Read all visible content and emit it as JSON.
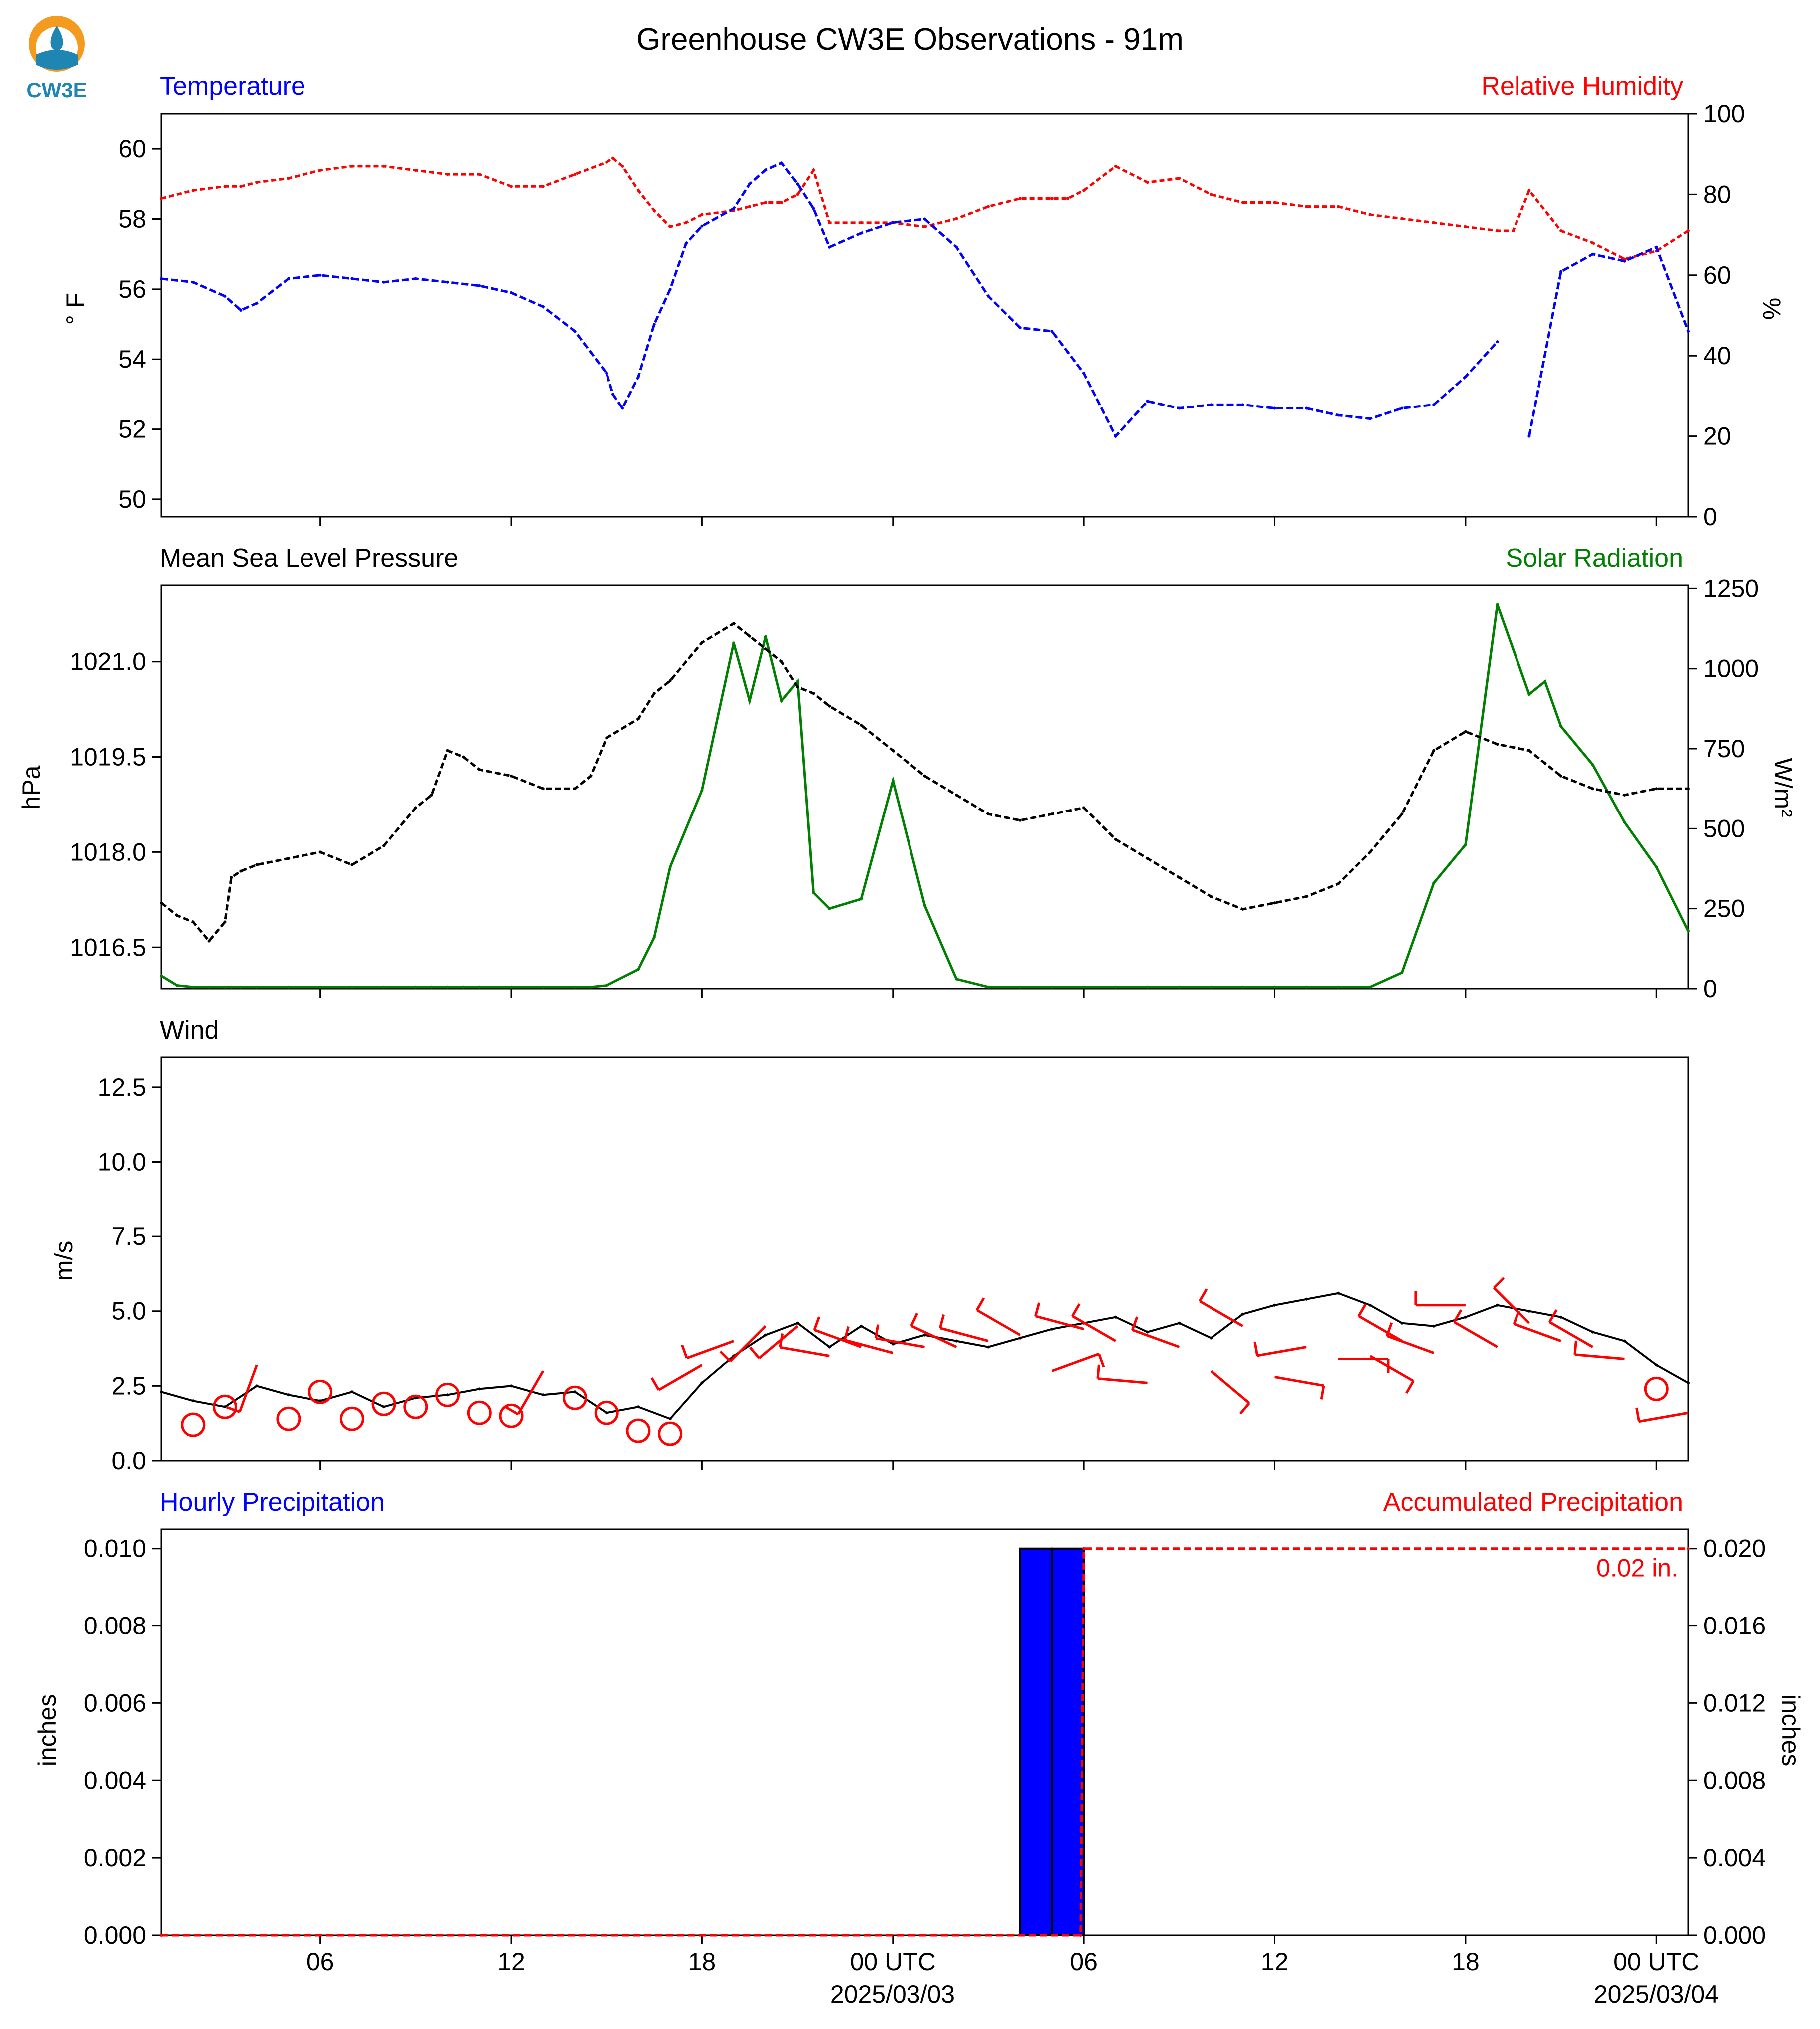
{
  "page": {
    "title": "Greenhouse CW3E Observations - 91m",
    "logo_text": "CW3E"
  },
  "colors": {
    "temperature": "#0000ff",
    "humidity": "#ff0000",
    "pressure": "#000000",
    "solar": "#008000",
    "wind_speed": "#000000",
    "wind_barb": "#ff0000",
    "hourly_precip": "#0000ff",
    "accum_precip": "#ff0000",
    "logo_orange": "#f39a1f",
    "logo_teal": "#1f86b4"
  },
  "time_axis": {
    "tick_labels": [
      "06",
      "12",
      "18",
      "00 UTC",
      "06",
      "12",
      "18",
      "00 UTC"
    ],
    "date_labels": [
      "2025/03/03",
      "2025/03/04"
    ]
  },
  "chart_data": [
    {
      "id": "temperature_humidity",
      "type": "line",
      "left_title": "Temperature",
      "right_title": "Relative Humidity",
      "ylabel": "° F",
      "ylabel_right": "%",
      "ylim": [
        49.5,
        61
      ],
      "ylim_right": [
        0,
        100
      ],
      "yticks": [
        50,
        52,
        54,
        56,
        58,
        60
      ],
      "yticks_right": [
        0,
        20,
        40,
        60,
        80,
        100
      ],
      "x_hours": [
        0,
        1,
        2,
        2.5,
        3,
        4,
        5,
        6,
        7,
        8,
        9,
        10,
        11,
        12,
        13,
        14,
        14.2,
        14.5,
        15,
        15.5,
        16,
        16.5,
        17,
        18,
        18.5,
        19,
        19.5,
        20,
        20.5,
        21,
        22,
        23,
        24,
        25,
        26,
        27,
        28,
        28.5,
        29,
        30,
        31,
        32,
        33,
        34,
        35,
        36,
        37,
        38,
        39,
        40,
        41,
        42,
        42.5,
        43,
        44,
        45,
        46,
        47,
        48
      ],
      "series": [
        {
          "name": "Temperature",
          "axis": "left",
          "values": [
            56.3,
            56.2,
            55.8,
            55.4,
            55.6,
            56.3,
            56.4,
            56.3,
            56.2,
            56.3,
            56.2,
            56.1,
            55.9,
            55.5,
            54.8,
            53.6,
            53.0,
            52.6,
            53.5,
            55.0,
            56.0,
            57.3,
            57.8,
            58.3,
            59.0,
            59.4,
            59.6,
            59.0,
            58.3,
            57.2,
            57.6,
            57.9,
            58.0,
            57.2,
            55.8,
            54.9,
            54.8,
            54.2,
            53.6,
            51.8,
            52.8,
            52.6,
            52.7,
            52.7,
            52.6,
            52.6,
            52.4,
            52.3,
            52.6,
            52.7,
            53.5,
            54.5,
            null,
            51.8,
            56.5,
            57.0,
            56.8,
            57.2,
            54.8
          ]
        },
        {
          "name": "Relative Humidity",
          "axis": "right",
          "values": [
            79,
            81,
            82,
            82,
            83,
            84,
            86,
            87,
            87,
            86,
            85,
            85,
            82,
            82,
            85,
            88,
            89,
            87,
            81,
            76,
            72,
            73,
            75,
            76,
            77,
            78,
            78,
            80,
            86,
            73,
            73,
            73,
            72,
            74,
            77,
            79,
            79,
            79,
            81,
            87,
            83,
            84,
            80,
            78,
            78,
            77,
            77,
            75,
            74,
            73,
            72,
            71,
            71,
            81,
            71,
            68,
            64,
            66,
            71
          ]
        }
      ]
    },
    {
      "id": "pressure_solar",
      "type": "line",
      "left_title": "Mean Sea Level Pressure",
      "right_title": "Solar Radiation",
      "ylabel": "hPa",
      "ylabel_right": "W/m²",
      "ylim": [
        1015.85,
        1022.2
      ],
      "ylim_right": [
        0,
        1260
      ],
      "yticks": [
        1016.5,
        1018.0,
        1019.5,
        1021.0
      ],
      "ytick_labels": [
        "1016.5",
        "1018.0",
        "1019.5",
        "1021.0"
      ],
      "yticks_right": [
        0,
        250,
        500,
        750,
        1000,
        1250
      ],
      "x_hours": [
        0,
        0.5,
        1,
        1.5,
        2,
        2.2,
        2.5,
        3,
        4,
        5,
        6,
        7,
        8,
        8.5,
        9,
        9.5,
        10,
        11,
        12,
        13,
        13.5,
        14,
        15,
        15.5,
        16,
        17,
        18,
        18.5,
        19,
        19.5,
        20,
        20.5,
        21,
        22,
        23,
        24,
        25,
        26,
        27,
        28,
        29,
        30,
        31,
        32,
        33,
        34,
        35,
        36,
        37,
        38,
        39,
        40,
        41,
        42,
        43,
        43.5,
        44,
        45,
        46,
        47,
        48
      ],
      "series": [
        {
          "name": "Mean Sea Level Pressure",
          "axis": "left",
          "values": [
            1017.2,
            1017.0,
            1016.9,
            1016.6,
            1016.9,
            1017.6,
            1017.7,
            1017.8,
            1017.9,
            1018.0,
            1017.8,
            1018.1,
            1018.7,
            1018.9,
            1019.6,
            1019.5,
            1019.3,
            1019.2,
            1019.0,
            1019.0,
            1019.2,
            1019.8,
            1020.1,
            1020.5,
            1020.7,
            1021.3,
            1021.6,
            1021.4,
            1021.2,
            1021.0,
            1020.6,
            1020.5,
            1020.3,
            1020.0,
            1019.6,
            1019.2,
            1018.9,
            1018.6,
            1018.5,
            1018.6,
            1018.7,
            1018.2,
            1017.9,
            1017.6,
            1017.3,
            1017.1,
            1017.2,
            1017.3,
            1017.5,
            1018.0,
            1018.6,
            1019.6,
            1019.9,
            1019.7,
            1019.6,
            1019.4,
            1019.2,
            1019.0,
            1018.9,
            1019.0,
            1019.0
          ]
        },
        {
          "name": "Solar Radiation",
          "axis": "right",
          "values": [
            40,
            10,
            5,
            5,
            5,
            5,
            5,
            5,
            5,
            5,
            5,
            5,
            5,
            5,
            5,
            5,
            5,
            5,
            5,
            5,
            5,
            10,
            60,
            160,
            380,
            620,
            1080,
            900,
            1100,
            900,
            960,
            300,
            250,
            280,
            650,
            260,
            30,
            5,
            5,
            5,
            5,
            5,
            5,
            5,
            5,
            5,
            5,
            5,
            5,
            5,
            50,
            330,
            450,
            1200,
            920,
            960,
            820,
            700,
            520,
            380,
            180
          ]
        }
      ]
    },
    {
      "id": "wind",
      "type": "line",
      "left_title": "Wind",
      "ylabel": "m/s",
      "ylim": [
        0,
        13.5
      ],
      "yticks": [
        0.0,
        2.5,
        5.0,
        7.5,
        10.0,
        12.5
      ],
      "ytick_labels": [
        "0.0",
        "2.5",
        "5.0",
        "7.5",
        "10.0",
        "12.5"
      ],
      "x_hours": [
        0,
        1,
        2,
        3,
        4,
        5,
        6,
        7,
        8,
        9,
        10,
        11,
        12,
        13,
        14,
        15,
        16,
        17,
        18,
        19,
        20,
        21,
        22,
        23,
        24,
        25,
        26,
        27,
        28,
        29,
        30,
        31,
        32,
        33,
        34,
        35,
        36,
        37,
        38,
        39,
        40,
        41,
        42,
        43,
        44,
        45,
        46,
        47,
        48
      ],
      "series": [
        {
          "name": "Wind Speed",
          "axis": "left",
          "values": [
            2.3,
            2.0,
            1.8,
            2.5,
            2.2,
            2.0,
            2.3,
            1.8,
            2.1,
            2.2,
            2.4,
            2.5,
            2.2,
            2.3,
            1.6,
            1.8,
            1.4,
            2.6,
            3.5,
            4.2,
            4.6,
            3.8,
            4.5,
            3.9,
            4.2,
            4.0,
            3.8,
            4.1,
            4.4,
            4.6,
            4.8,
            4.3,
            4.6,
            4.1,
            4.9,
            5.2,
            5.4,
            5.6,
            5.2,
            4.6,
            4.5,
            4.8,
            5.2,
            5.0,
            4.8,
            4.3,
            4.0,
            3.2,
            2.6
          ]
        }
      ],
      "barb_hours": [
        1,
        2,
        3,
        4,
        5,
        6,
        7,
        8,
        9,
        10,
        11,
        12,
        13,
        14,
        15,
        16,
        17,
        18,
        19,
        20,
        21,
        22,
        23,
        24,
        25,
        26,
        27,
        28,
        29,
        30,
        31,
        32,
        33,
        34,
        35,
        36,
        37,
        38,
        39,
        40,
        41,
        42,
        43,
        44,
        45,
        46,
        47,
        48
      ],
      "barb_dirs_deg": [
        null,
        null,
        200,
        null,
        null,
        null,
        null,
        null,
        null,
        null,
        null,
        210,
        null,
        null,
        null,
        null,
        240,
        250,
        225,
        230,
        280,
        290,
        285,
        280,
        295,
        285,
        300,
        70,
        285,
        300,
        275,
        290,
        130,
        300,
        100,
        260,
        90,
        120,
        300,
        290,
        270,
        300,
        315,
        290,
        300,
        275,
        null,
        260
      ],
      "barb_speeds_ms": [
        1.2,
        1.8,
        3.2,
        1.4,
        2.3,
        1.4,
        1.9,
        1.8,
        2.2,
        1.6,
        1.5,
        3.0,
        2.1,
        1.6,
        1.0,
        0.9,
        3.2,
        4.0,
        4.5,
        4.5,
        3.5,
        3.8,
        3.6,
        3.8,
        3.8,
        4.0,
        4.2,
        3.0,
        4.4,
        4.0,
        2.6,
        3.8,
        3.0,
        4.5,
        2.8,
        3.8,
        3.4,
        3.5,
        4.0,
        3.6,
        5.2,
        3.8,
        4.6,
        4.0,
        3.8,
        3.4,
        2.4,
        1.6
      ]
    },
    {
      "id": "precipitation",
      "type": "bar",
      "left_title": "Hourly Precipitation",
      "right_title": "Accumulated Precipitation",
      "ylabel": "inches",
      "ylabel_right": "inches",
      "ylim": [
        0,
        0.0105
      ],
      "ylim_right": [
        0,
        0.021
      ],
      "yticks": [
        0.0,
        0.002,
        0.004,
        0.006,
        0.008,
        0.01
      ],
      "ytick_labels": [
        "0.000",
        "0.002",
        "0.004",
        "0.006",
        "0.008",
        "0.010"
      ],
      "yticks_right": [
        0.0,
        0.004,
        0.008,
        0.012,
        0.016,
        0.02
      ],
      "ytick_labels_right": [
        "0.000",
        "0.004",
        "0.008",
        "0.012",
        "0.016",
        "0.020"
      ],
      "bars": [
        {
          "start_hour": 27,
          "end_hour": 28,
          "value": 0.01
        },
        {
          "start_hour": 28,
          "end_hour": 29,
          "value": 0.01
        }
      ],
      "accumulated": {
        "x_hours": [
          0,
          28.9,
          29,
          48
        ],
        "values": [
          0.0,
          0.0,
          0.02,
          0.02
        ]
      },
      "total_label": "0.02 in."
    }
  ]
}
